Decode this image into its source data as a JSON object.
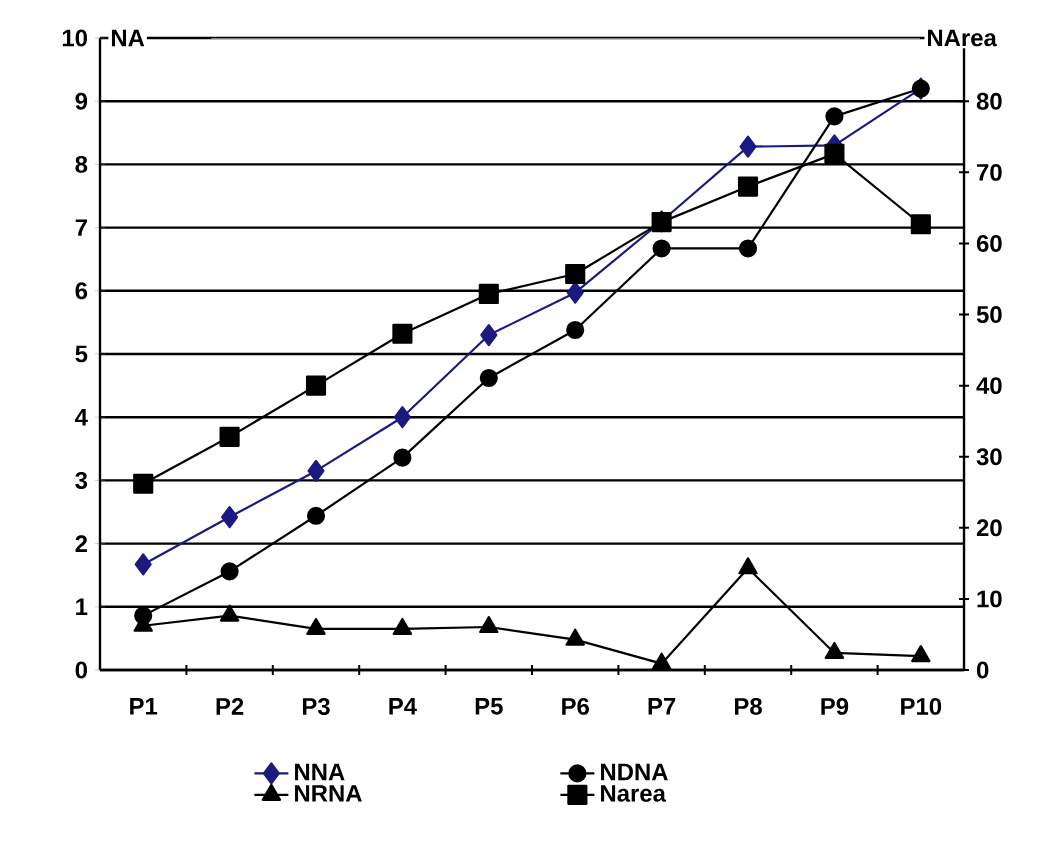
{
  "chart_data": {
    "type": "line",
    "ylabel": "NA",
    "y2label": "NArea",
    "categories": [
      "P1",
      "P2",
      "P3",
      "P4",
      "P5",
      "P6",
      "P7",
      "P8",
      "P9",
      "P10"
    ],
    "ylim": [
      0,
      10
    ],
    "yticks": [
      0,
      1,
      2,
      3,
      4,
      5,
      6,
      7,
      8,
      9,
      10
    ],
    "y2lim": [
      0,
      88.9
    ],
    "y2ticks": [
      0,
      10,
      20,
      30,
      40,
      50,
      60,
      70,
      80
    ],
    "grid": "y",
    "legend": "bottom",
    "series": [
      {
        "name": "NNA",
        "color": "#1a1a80",
        "marker": "diamond",
        "values": [
          1.67,
          2.42,
          3.15,
          4.0,
          5.3,
          5.97,
          7.1,
          8.28,
          8.3,
          9.2
        ]
      },
      {
        "name": "NDNA",
        "color": "#000000",
        "marker": "circle",
        "values": [
          0.86,
          1.56,
          2.44,
          3.36,
          4.62,
          5.38,
          6.67,
          6.67,
          8.76,
          9.2
        ]
      },
      {
        "name": "NRNA",
        "color": "#000000",
        "marker": "triangle",
        "values": [
          0.7,
          0.86,
          0.65,
          0.65,
          0.68,
          0.48,
          0.1,
          1.61,
          0.27,
          0.22
        ]
      },
      {
        "name": "Narea",
        "color": "#000000",
        "marker": "square",
        "axis": "y2",
        "values": [
          26.2,
          32.8,
          40,
          47.3,
          52.9,
          55.7,
          63,
          68,
          72.6,
          62.7
        ]
      }
    ]
  }
}
